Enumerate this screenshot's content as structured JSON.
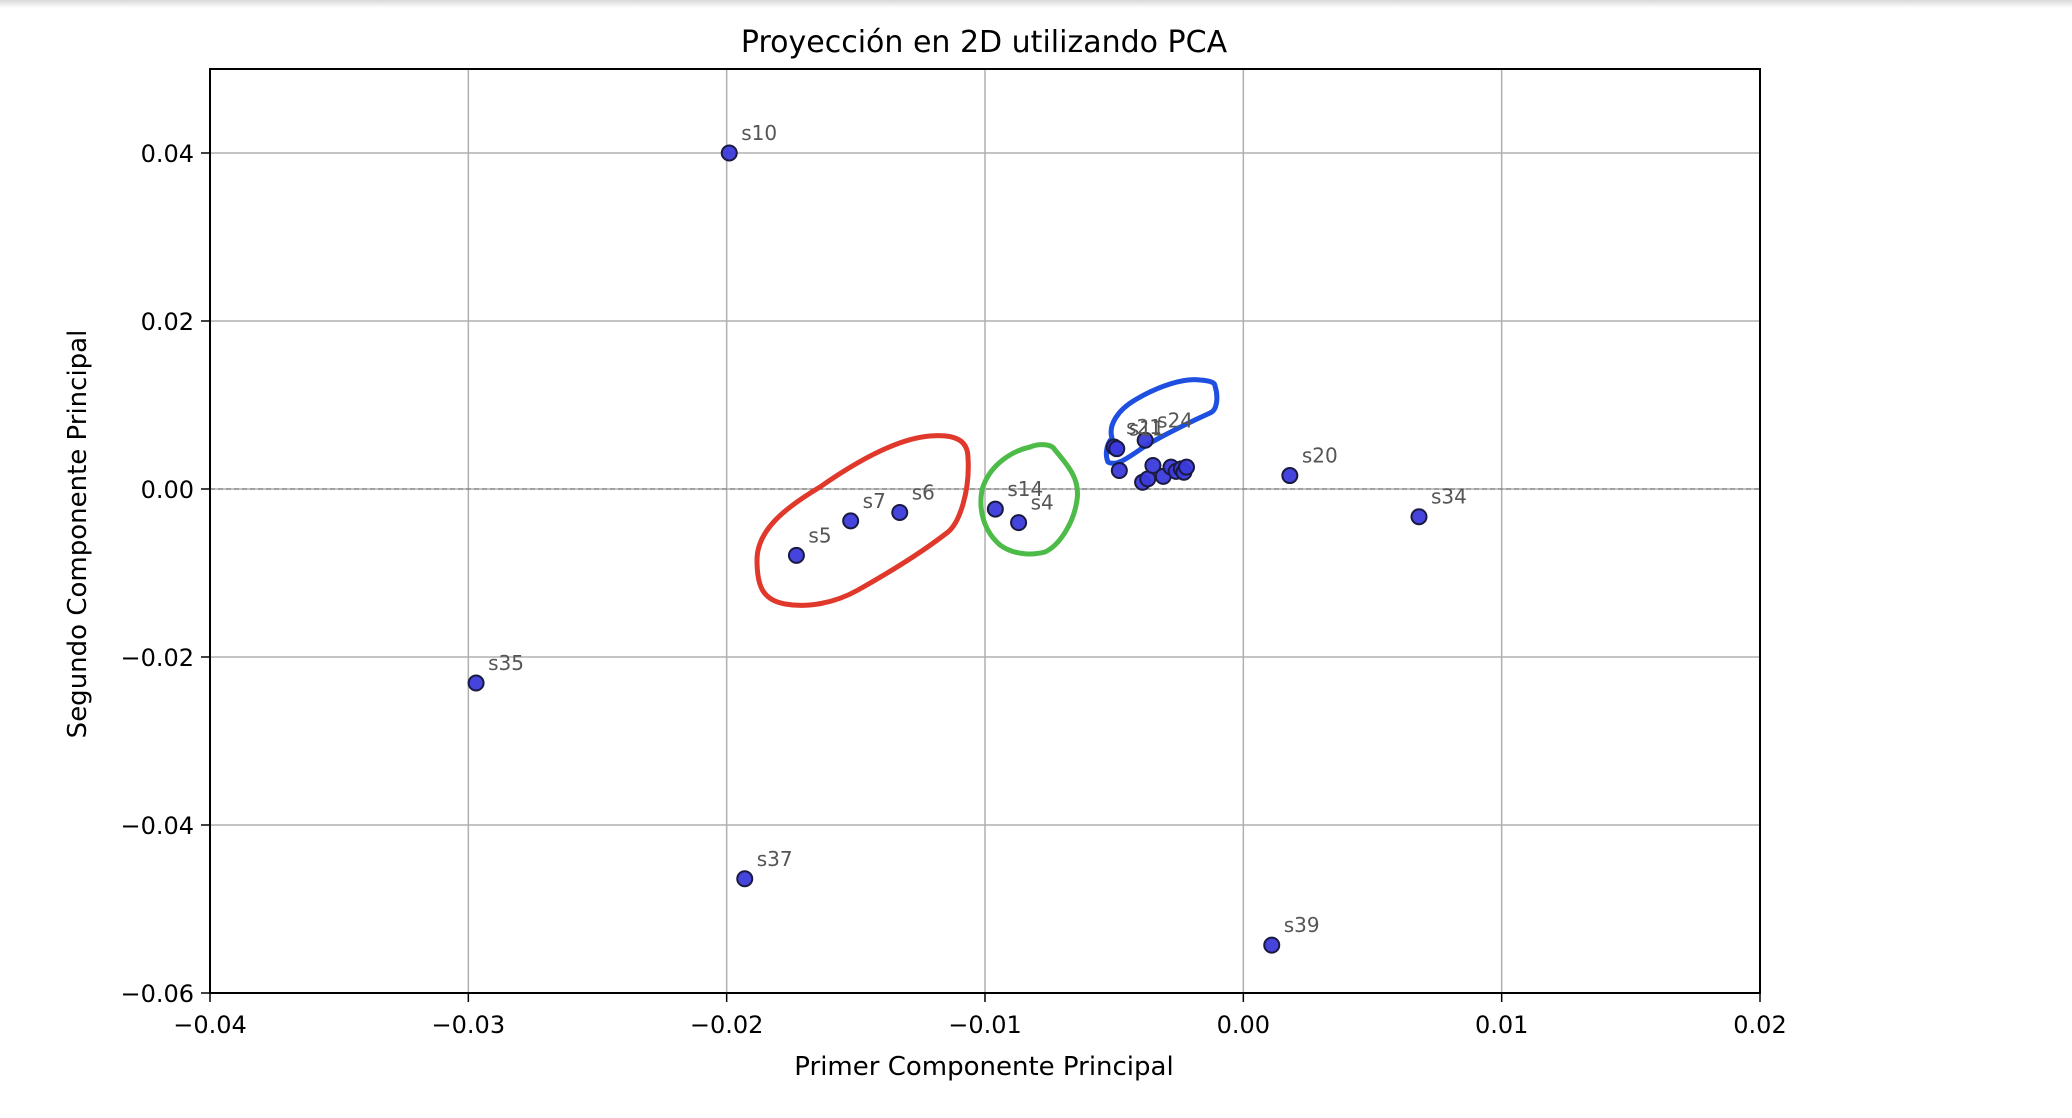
{
  "chart_data": {
    "type": "scatter",
    "title": "Proyección en 2D utilizando PCA",
    "xlabel": "Primer Componente Principal",
    "ylabel": "Segundo Componente Principal",
    "xlim": [
      -0.04,
      0.02
    ],
    "ylim": [
      -0.06,
      0.05
    ],
    "xticks": [
      -0.04,
      -0.03,
      -0.02,
      -0.01,
      0.0,
      0.01,
      0.02
    ],
    "xtick_labels": [
      "−0.04",
      "−0.03",
      "−0.02",
      "−0.01",
      "0.00",
      "0.01",
      "0.02"
    ],
    "yticks": [
      -0.06,
      -0.04,
      -0.02,
      0.0,
      0.02,
      0.04
    ],
    "ytick_labels": [
      "−0.06",
      "−0.04",
      "−0.02",
      "0.00",
      "0.02",
      "0.04"
    ],
    "grid": true,
    "zero_line": "y=0 dashed",
    "marker_color": "#3b3bdc",
    "marker_edge_color": "#1a1a40",
    "points": [
      {
        "label": "s10",
        "x": -0.0199,
        "y": 0.04
      },
      {
        "label": "s35",
        "x": -0.0297,
        "y": -0.0231
      },
      {
        "label": "s37",
        "x": -0.0193,
        "y": -0.0464
      },
      {
        "label": "s39",
        "x": 0.0011,
        "y": -0.0543
      },
      {
        "label": "s5",
        "x": -0.0173,
        "y": -0.0079
      },
      {
        "label": "s7",
        "x": -0.0152,
        "y": -0.0038
      },
      {
        "label": "s6",
        "x": -0.0133,
        "y": -0.0028
      },
      {
        "label": "s14",
        "x": -0.0096,
        "y": -0.0024
      },
      {
        "label": "s4",
        "x": -0.0087,
        "y": -0.004
      },
      {
        "label": "s20",
        "x": 0.0018,
        "y": 0.0016
      },
      {
        "label": "s34",
        "x": 0.0068,
        "y": -0.0033
      },
      {
        "label": "s24",
        "x": -0.0038,
        "y": 0.0058
      },
      {
        "label": "s21",
        "x": -0.005,
        "y": 0.005
      },
      {
        "label": "s11",
        "x": -0.0049,
        "y": 0.0048
      },
      {
        "label": "",
        "x": -0.0048,
        "y": 0.0022
      },
      {
        "label": "",
        "x": -0.0039,
        "y": 0.0008
      },
      {
        "label": "",
        "x": -0.0037,
        "y": 0.0012
      },
      {
        "label": "",
        "x": -0.0035,
        "y": 0.0028
      },
      {
        "label": "",
        "x": -0.0031,
        "y": 0.0015
      },
      {
        "label": "",
        "x": -0.0028,
        "y": 0.0026
      },
      {
        "label": "",
        "x": -0.0026,
        "y": 0.0021
      },
      {
        "label": "",
        "x": -0.0024,
        "y": 0.0024
      },
      {
        "label": "",
        "x": -0.0023,
        "y": 0.002
      },
      {
        "label": "",
        "x": -0.0022,
        "y": 0.0026
      }
    ],
    "annotations": [
      {
        "shape": "freehand-loop",
        "color": "#e0382b",
        "encloses": [
          "s5",
          "s7",
          "s6"
        ]
      },
      {
        "shape": "freehand-loop",
        "color": "#4cbb47",
        "encloses": [
          "s14",
          "s4"
        ]
      },
      {
        "shape": "freehand-loop",
        "color": "#1e4fe0",
        "encloses": [
          "s21",
          "s11",
          "s24"
        ]
      }
    ]
  }
}
